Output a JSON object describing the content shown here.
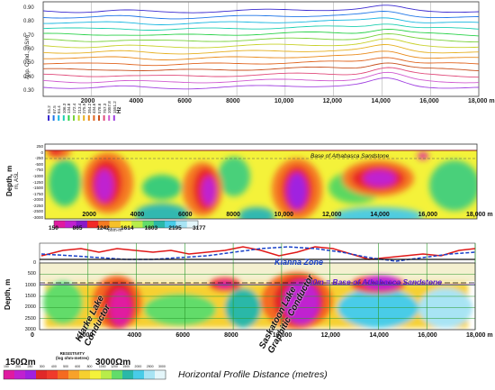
{
  "panel1": {
    "ylabel": "App. Cond., mS/m",
    "y_ticks": [
      "0.90",
      "0.80",
      "0.70",
      "0.60",
      "0.50",
      "0.40",
      "0.30"
    ],
    "x_ticks": [
      "2000",
      "4000",
      "6000",
      "8000",
      "10,000",
      "12,000",
      "14,000",
      "16,000",
      "18,000 m"
    ],
    "freq_unit": "Hz",
    "freq_labels": [
      "55.2",
      "67.5",
      "84.4",
      "106.3",
      "134.8",
      "172.4",
      "213.4",
      "275.9",
      "354.2",
      "434.6",
      "578.6",
      "757.3",
      "1057.8",
      "1551.2"
    ],
    "curve_colors": [
      "#3a2ad0",
      "#1f76e8",
      "#15b6e0",
      "#1ccfb0",
      "#2ad24a",
      "#7ad23a",
      "#c8d12a",
      "#e6b020",
      "#e98a1a",
      "#e0641e",
      "#c8501e",
      "#e04a7a",
      "#d05ad0",
      "#a040e0"
    ]
  },
  "panel2": {
    "ylabel": "Depth, m",
    "sublabel": "m, ASL",
    "depth_ticks": [
      "250",
      "0",
      "-250",
      "-500",
      "-750",
      "-1000",
      "-1250",
      "-1500",
      "-1750",
      "-2000",
      "-2250",
      "-2500",
      "-3000"
    ],
    "x_ticks": [
      "2000",
      "4000",
      "6000",
      "8000",
      "10,000",
      "12,000",
      "14,000",
      "16,000",
      "18,000 m"
    ],
    "annotation": "Base of Athabasca Sandstone",
    "colorbar_ticks": [
      "150",
      "865",
      "1242",
      "1614",
      "1803",
      "2195",
      "3177"
    ],
    "colorbar_unit": "ohm-m",
    "colorbar_colors": [
      "#e01aa0",
      "#c020d0",
      "#8a18c8",
      "#f22828",
      "#f57a20",
      "#f6c02a",
      "#f4f23a",
      "#b8ec4a",
      "#62dc6a",
      "#2ab8a8",
      "#48cce8",
      "#a8e4f4",
      "#e4f6fa"
    ]
  },
  "panel3": {
    "ylabel": "Depth, m",
    "depth_ticks": [
      "0",
      "500",
      "1000",
      "1500",
      "2000",
      "2500",
      "3000"
    ],
    "x_ticks": [
      "0",
      "2000",
      "4000",
      "6000",
      "8000",
      "10,000",
      "12,000",
      "14,000",
      "16,000",
      "18,000 m"
    ],
    "kianna": "Kianna Zone",
    "base_label": "700m = Base of Athabasca Sandstone",
    "conductor1": [
      "Klarke Lake",
      "Conductor"
    ],
    "conductor2": [
      "Saskatoon Lake",
      "Graphitic Conductor"
    ],
    "legend_left": "150Ωm",
    "legend_right": "3000Ωm",
    "legend_title": [
      "RESISTIVITY",
      "(log ohm-metres)"
    ],
    "legend_ticks": [
      "150",
      "200",
      "250",
      "300",
      "400",
      "500",
      "600",
      "800",
      "1000",
      "1200",
      "1500",
      "2000",
      "2500",
      "3000"
    ],
    "legend_colors": [
      "#e01aa0",
      "#c020d0",
      "#a020e0",
      "#e02828",
      "#f03a2a",
      "#f56a20",
      "#f8a22a",
      "#f6d030",
      "#f4f23a",
      "#b8ec4a",
      "#62dc6a",
      "#2ab8a8",
      "#48cce8",
      "#a8e4f4",
      "#e4f6fa"
    ],
    "xlabel": "Horizontal Profile Distance (metres)"
  }
}
